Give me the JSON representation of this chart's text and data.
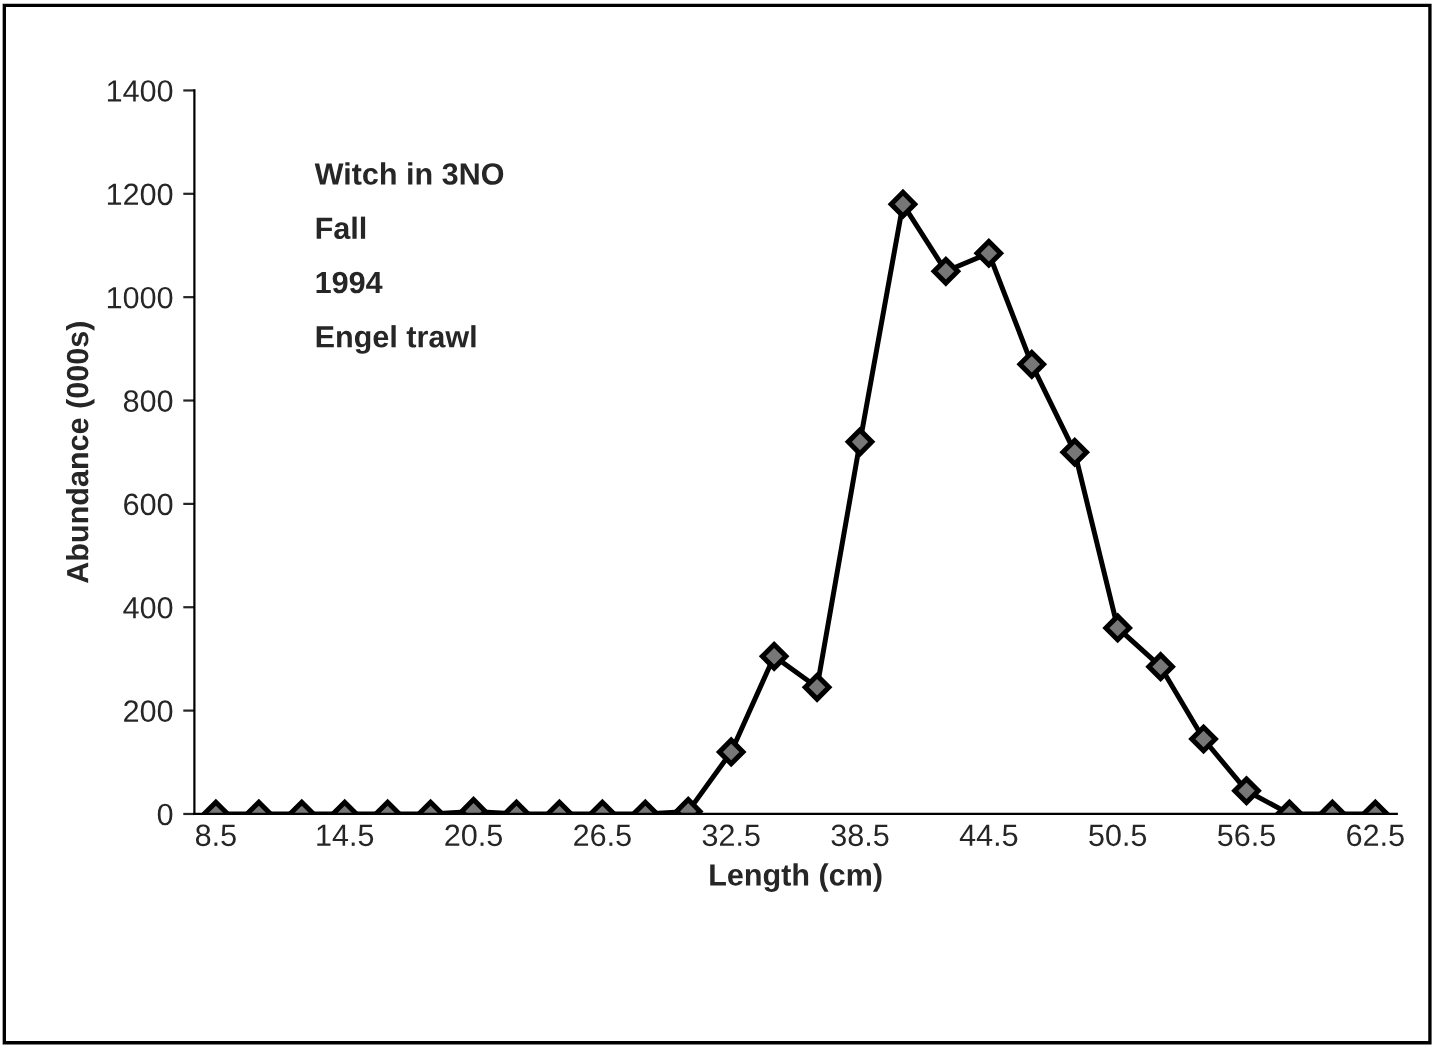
{
  "chart_data": {
    "type": "line",
    "xlabel": "Length (cm)",
    "ylabel": "Abundance (000s)",
    "annotations": [
      "Witch in 3NO",
      "Fall",
      "1994",
      "Engel trawl"
    ],
    "categories": [
      "8.5",
      null,
      null,
      "14.5",
      null,
      null,
      "20.5",
      null,
      null,
      "26.5",
      null,
      null,
      "32.5",
      null,
      null,
      "38.5",
      null,
      null,
      "44.5",
      null,
      null,
      "50.5",
      null,
      null,
      "56.5",
      null,
      null,
      "62.5"
    ],
    "series": [
      {
        "color": "#000000",
        "values": [
          0,
          0,
          0,
          0,
          0,
          0,
          5,
          0,
          0,
          0,
          0,
          5,
          120,
          305,
          245,
          720,
          1180,
          1050,
          1085,
          870,
          700,
          360,
          285,
          145,
          45,
          0,
          0,
          0
        ]
      }
    ],
    "ylim": [
      0,
      1400
    ],
    "yticks": [
      0,
      200,
      400,
      600,
      800,
      1000,
      1200,
      1400
    ],
    "grid": false,
    "legend": false,
    "marker": "diamond",
    "line_style": "solid"
  }
}
